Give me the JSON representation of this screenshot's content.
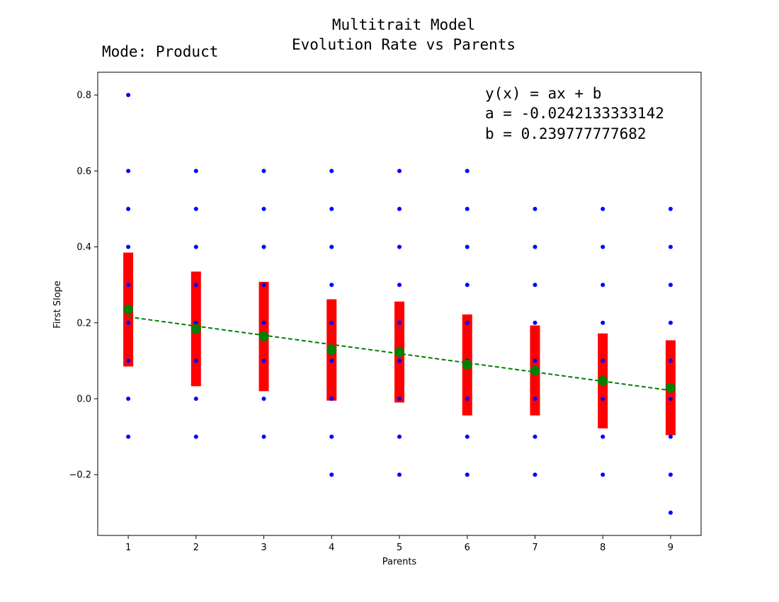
{
  "chart_data": {
    "type": "scatter",
    "title_lines": [
      "Multitrait Model",
      "Evolution Rate vs Parents"
    ],
    "mode_label": "Mode: Product",
    "xlabel": "Parents",
    "ylabel": "First Slope",
    "xlim": [
      0.55,
      9.45
    ],
    "ylim": [
      -0.36,
      0.86
    ],
    "xticks": [
      1,
      2,
      3,
      4,
      5,
      6,
      7,
      8,
      9
    ],
    "yticks": [
      0.8,
      0.6,
      0.4,
      0.2,
      0.0,
      -0.2
    ],
    "ytick_labels": [
      "0.8",
      "0.6",
      "0.4",
      "0.2",
      "0.0",
      "−0.2"
    ],
    "fit_equation": {
      "formula": "y(x) = ax + b",
      "a_text": "a = -0.0242133333142",
      "b_text": "b = 0.239777777682",
      "a": -0.0242133333142,
      "b": 0.239777777682
    },
    "scatter_points": [
      {
        "x": 1,
        "ys": [
          0.8,
          0.6,
          0.5,
          0.4,
          0.3,
          0.2,
          0.1,
          0.0,
          -0.1
        ]
      },
      {
        "x": 2,
        "ys": [
          0.6,
          0.5,
          0.4,
          0.3,
          0.2,
          0.1,
          0.0,
          -0.1
        ]
      },
      {
        "x": 3,
        "ys": [
          0.6,
          0.5,
          0.4,
          0.3,
          0.2,
          0.1,
          0.0,
          -0.1
        ]
      },
      {
        "x": 4,
        "ys": [
          0.6,
          0.5,
          0.4,
          0.3,
          0.2,
          0.1,
          0.0,
          -0.1,
          -0.2
        ]
      },
      {
        "x": 5,
        "ys": [
          0.6,
          0.5,
          0.4,
          0.3,
          0.2,
          0.1,
          0.0,
          -0.1,
          -0.2
        ]
      },
      {
        "x": 6,
        "ys": [
          0.6,
          0.5,
          0.4,
          0.3,
          0.2,
          0.1,
          0.0,
          -0.1,
          -0.2
        ]
      },
      {
        "x": 7,
        "ys": [
          0.5,
          0.4,
          0.3,
          0.2,
          0.1,
          0.0,
          -0.1,
          -0.2
        ]
      },
      {
        "x": 8,
        "ys": [
          0.5,
          0.4,
          0.3,
          0.2,
          0.1,
          0.0,
          -0.1,
          -0.2
        ]
      },
      {
        "x": 9,
        "ys": [
          0.5,
          0.4,
          0.3,
          0.2,
          0.1,
          0.0,
          -0.1,
          -0.2,
          -0.3
        ]
      }
    ],
    "means": [
      {
        "x": 1,
        "mean": 0.235,
        "low": 0.085,
        "high": 0.385
      },
      {
        "x": 2,
        "mean": 0.184,
        "low": 0.033,
        "high": 0.335
      },
      {
        "x": 3,
        "mean": 0.164,
        "low": 0.02,
        "high": 0.308
      },
      {
        "x": 4,
        "mean": 0.128,
        "low": -0.005,
        "high": 0.262
      },
      {
        "x": 5,
        "mean": 0.123,
        "low": -0.01,
        "high": 0.256
      },
      {
        "x": 6,
        "mean": 0.09,
        "low": -0.044,
        "high": 0.222
      },
      {
        "x": 7,
        "mean": 0.074,
        "low": -0.044,
        "high": 0.193
      },
      {
        "x": 8,
        "mean": 0.047,
        "low": -0.078,
        "high": 0.172
      },
      {
        "x": 9,
        "mean": 0.029,
        "low": -0.096,
        "high": 0.154
      }
    ],
    "grid": false,
    "colors": {
      "points": "#0000ff",
      "error_bars": "#ff0000",
      "means": "#008000",
      "fit_line": "#008000"
    }
  }
}
